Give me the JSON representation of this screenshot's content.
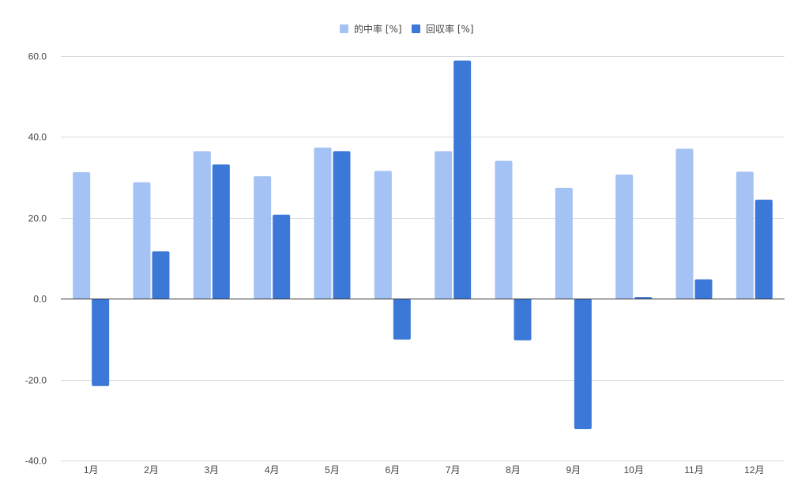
{
  "chart_data": {
    "type": "bar",
    "title": "",
    "xlabel": "",
    "ylabel": "",
    "categories": [
      "1月",
      "2月",
      "3月",
      "4月",
      "5月",
      "6月",
      "7月",
      "8月",
      "9月",
      "10月",
      "11月",
      "12月"
    ],
    "series": [
      {
        "name": "的中率 [%]",
        "color": "#a4c2f4",
        "values": [
          31.3,
          28.8,
          36.5,
          30.3,
          37.4,
          31.6,
          36.5,
          34.1,
          27.4,
          30.7,
          37.1,
          31.4
        ]
      },
      {
        "name": "回収率 [%]",
        "color": "#3c78d8",
        "values": [
          -21.6,
          11.7,
          33.2,
          20.8,
          36.5,
          -10.1,
          58.9,
          -10.3,
          -32.2,
          0.4,
          4.8,
          24.5
        ]
      }
    ],
    "ylim": [
      -40,
      60
    ],
    "yticks": [
      "-40.0",
      "-20.0",
      "0.0",
      "20.0",
      "40.0",
      "60.0"
    ],
    "ytick_values": [
      -40,
      -20,
      0,
      20,
      40,
      60
    ],
    "grid": true,
    "legend_position": "top-center"
  }
}
